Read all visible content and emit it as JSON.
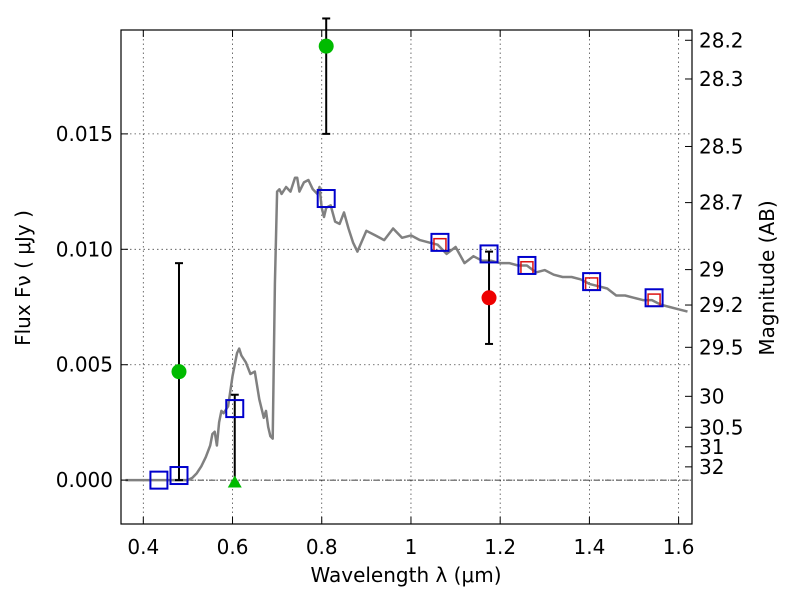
{
  "chart_data": {
    "type": "scatter",
    "xlabel": "Wavelength  λ (μm)",
    "ylabel_main": "Flux  Fν  ( μJy )",
    "y2label": "Magnitude (AB)",
    "xlim": [
      0.35,
      1.63
    ],
    "ylim": [
      -0.0019,
      0.0195
    ],
    "x_ticks": [
      0.4,
      0.6,
      0.8,
      1.0,
      1.2,
      1.4,
      1.6
    ],
    "x_tick_labels": [
      "0.4",
      "0.6",
      "0.8",
      "1",
      "1.2",
      "1.4",
      "1.6"
    ],
    "y_ticks": [
      0.0,
      0.005,
      0.01,
      0.015
    ],
    "y_tick_labels": [
      "0.000",
      "0.005",
      "0.010",
      "0.015"
    ],
    "magnitude_ticks": [
      28.2,
      28.3,
      28.5,
      28.7,
      29,
      29.2,
      29.5,
      30,
      30.5,
      31,
      32
    ],
    "magnitude_tick_labels": [
      "28.2",
      "28.3",
      "28.5",
      "28.7",
      "29",
      "29.2",
      "29.5",
      "30",
      "30.5",
      "31",
      "32"
    ],
    "grid": true,
    "zero_line": true,
    "colors": {
      "model": "#808080",
      "blue_square": "#0000cc",
      "red_square": "#dd1111",
      "green_point": "#00bb00",
      "red_point": "#ee0000",
      "errorbar": "#000000"
    },
    "series": [
      {
        "name": "SED model",
        "type": "line",
        "x": [
          0.36,
          0.4,
          0.45,
          0.48,
          0.5,
          0.51,
          0.52,
          0.53,
          0.54,
          0.55,
          0.555,
          0.56,
          0.565,
          0.57,
          0.575,
          0.58,
          0.59,
          0.6,
          0.61,
          0.615,
          0.62,
          0.63,
          0.64,
          0.65,
          0.66,
          0.67,
          0.675,
          0.68,
          0.685,
          0.69,
          0.695,
          0.7,
          0.705,
          0.71,
          0.72,
          0.73,
          0.74,
          0.745,
          0.75,
          0.76,
          0.77,
          0.78,
          0.79,
          0.795,
          0.8,
          0.805,
          0.81,
          0.82,
          0.83,
          0.84,
          0.85,
          0.86,
          0.87,
          0.88,
          0.9,
          0.92,
          0.94,
          0.96,
          0.98,
          1.0,
          1.02,
          1.04,
          1.06,
          1.08,
          1.1,
          1.12,
          1.14,
          1.16,
          1.18,
          1.2,
          1.22,
          1.24,
          1.26,
          1.28,
          1.3,
          1.32,
          1.34,
          1.36,
          1.38,
          1.4,
          1.42,
          1.44,
          1.46,
          1.48,
          1.5,
          1.52,
          1.54,
          1.56,
          1.58,
          1.6,
          1.62
        ],
        "values": [
          0.0,
          0.0,
          0.0,
          0.0,
          0.0,
          0.0001,
          0.0003,
          0.0006,
          0.001,
          0.0015,
          0.002,
          0.0021,
          0.0015,
          0.0025,
          0.003,
          0.0029,
          0.0032,
          0.0045,
          0.0055,
          0.0057,
          0.0054,
          0.0051,
          0.0046,
          0.0047,
          0.0035,
          0.0027,
          0.003,
          0.0023,
          0.0019,
          0.0018,
          0.0085,
          0.0125,
          0.0126,
          0.0124,
          0.0127,
          0.0125,
          0.0131,
          0.0131,
          0.0125,
          0.0129,
          0.013,
          0.0126,
          0.0124,
          0.0127,
          0.0118,
          0.0114,
          0.0118,
          0.0119,
          0.0112,
          0.0111,
          0.0116,
          0.0109,
          0.0103,
          0.0099,
          0.0108,
          0.0106,
          0.0104,
          0.0109,
          0.0105,
          0.0106,
          0.0104,
          0.0103,
          0.0102,
          0.0098,
          0.0101,
          0.0094,
          0.0097,
          0.0095,
          0.0095,
          0.0094,
          0.0094,
          0.0093,
          0.0093,
          0.009,
          0.0091,
          0.0089,
          0.0088,
          0.0088,
          0.0087,
          0.0085,
          0.0084,
          0.0083,
          0.008,
          0.008,
          0.0079,
          0.0078,
          0.0078,
          0.0076,
          0.0075,
          0.0074,
          0.0073
        ]
      },
      {
        "name": "model photometry (blue squares)",
        "type": "scatter",
        "x": [
          0.435,
          0.48,
          0.605,
          0.81,
          1.065,
          1.175,
          1.26,
          1.405,
          1.545
        ],
        "values": [
          0.0,
          0.0002,
          0.0031,
          0.0122,
          0.0103,
          0.0098,
          0.0093,
          0.0086,
          0.0079
        ]
      },
      {
        "name": "model photometry (red squares)",
        "type": "scatter",
        "x": [
          1.065,
          1.26,
          1.405,
          1.545
        ],
        "values": [
          0.0102,
          0.0092,
          0.0085,
          0.0078
        ]
      },
      {
        "name": "detections (green)",
        "type": "errorbar",
        "x": [
          0.48,
          0.81
        ],
        "values": [
          0.0047,
          0.0188
        ],
        "err_low": [
          0.0047,
          0.0038
        ],
        "err_high": [
          0.0047,
          0.0012
        ]
      },
      {
        "name": "upper limit (green triangle)",
        "type": "errorbar",
        "x": [
          0.605
        ],
        "values": [
          -0.0001
        ],
        "err_low": [
          0.0
        ],
        "err_high": [
          0.0038
        ]
      },
      {
        "name": "detection (red)",
        "type": "errorbar",
        "x": [
          1.175
        ],
        "values": [
          0.0079
        ],
        "err_low": [
          0.002
        ],
        "err_high": [
          0.002
        ]
      }
    ]
  }
}
